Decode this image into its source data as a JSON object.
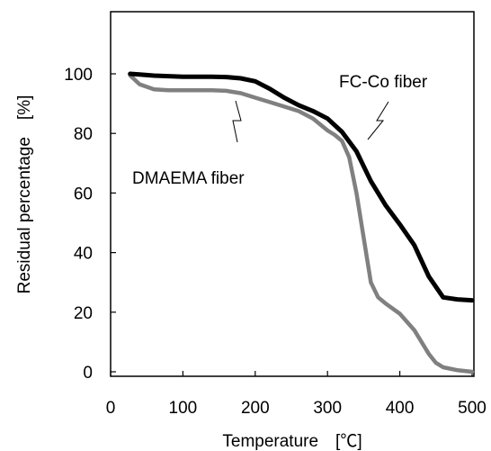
{
  "chart_data": {
    "type": "line",
    "xlabel": "Temperature　[℃]",
    "ylabel": "Residual percentage　[%]",
    "xlim": [
      0,
      500
    ],
    "ylim": [
      -3,
      120
    ],
    "xticks": [
      "0",
      "100",
      "200",
      "300",
      "400",
      "500"
    ],
    "yticks": [
      "0",
      "20",
      "40",
      "60",
      "80",
      "100"
    ],
    "grid": false,
    "series": [
      {
        "name": "FC-Co fiber",
        "color": "#000000",
        "x": [
          27,
          40,
          60,
          80,
          100,
          120,
          140,
          160,
          180,
          200,
          220,
          240,
          260,
          280,
          300,
          320,
          340,
          360,
          380,
          400,
          420,
          440,
          460,
          480,
          500
        ],
        "y": [
          100,
          99.8,
          99.4,
          99.2,
          99.0,
          99.0,
          99.0,
          98.9,
          98.5,
          97.5,
          95.0,
          92.0,
          89.5,
          87.5,
          85.0,
          80.5,
          74.0,
          64.0,
          56.0,
          49.5,
          42.5,
          32.0,
          25.0,
          24.3,
          24.0
        ]
      },
      {
        "name": "DMAEMA fiber",
        "color": "#808080",
        "x": [
          27,
          40,
          60,
          80,
          100,
          120,
          140,
          160,
          180,
          200,
          220,
          240,
          260,
          280,
          300,
          310,
          320,
          330,
          340,
          350,
          360,
          370,
          380,
          400,
          420,
          440,
          450,
          460,
          480,
          500
        ],
        "y": [
          99.5,
          96.5,
          94.8,
          94.5,
          94.5,
          94.5,
          94.5,
          94.3,
          93.5,
          92.0,
          90.5,
          89.0,
          87.5,
          85.0,
          81.0,
          79.5,
          77.5,
          72.0,
          60.0,
          45.0,
          30.0,
          25.0,
          23.0,
          19.5,
          14.0,
          6.0,
          3.0,
          1.5,
          0.5,
          0.0
        ]
      }
    ],
    "annotations": [
      {
        "text": "FC-Co fiber",
        "series": "FC-Co fiber"
      },
      {
        "text": "DMAEMA fiber",
        "series": "DMAEMA fiber"
      }
    ]
  }
}
